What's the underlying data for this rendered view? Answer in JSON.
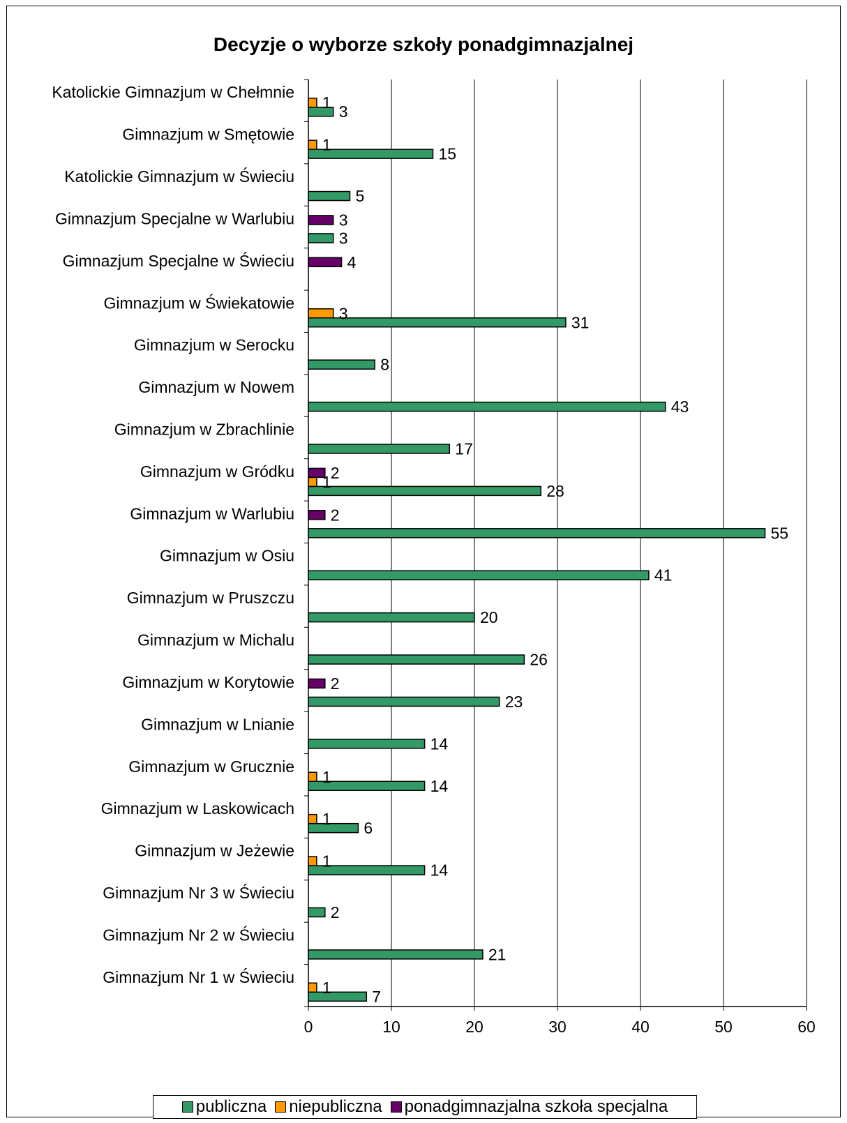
{
  "chart_data": {
    "type": "bar",
    "orientation": "horizontal",
    "title": "Decyzje o wyborze szkoły ponadgimnazjalnej",
    "categories": [
      "Katolickie Gimnazjum w Chełmnie",
      "Gimnazjum w Smętowie",
      "Katolickie Gimnazjum w Świeciu",
      "Gimnazjum Specjalne w Warlubiu",
      "Gimnazjum Specjalne w Świeciu",
      "Gimnazjum w Świekatowie",
      "Gimnazjum w Serocku",
      "Gimnazjum w Nowem",
      "Gimnazjum w Zbrachlinie",
      "Gimnazjum w Gródku",
      "Gimnazjum w Warlubiu",
      "Gimnazjum w Osiu",
      "Gimnazjum w Pruszczu",
      "Gimnazjum w Michalu",
      "Gimnazjum w Korytowie",
      "Gimnazjum w Lnianie",
      "Gimnazjum w Grucznie",
      "Gimnazjum w Laskowicach",
      "Gimnazjum w Jeżewie",
      "Gimnazjum Nr 3 w Świeciu",
      "Gimnazjum Nr 2 w Świeciu",
      "Gimnazjum Nr 1 w Świeciu"
    ],
    "series": [
      {
        "name": "publiczna",
        "color": "#339966",
        "values": [
          3,
          15,
          5,
          3,
          null,
          31,
          8,
          43,
          17,
          28,
          55,
          41,
          20,
          26,
          23,
          14,
          14,
          6,
          14,
          2,
          21,
          7
        ]
      },
      {
        "name": "niepubliczna",
        "color": "#FF9900",
        "values": [
          1,
          1,
          null,
          null,
          null,
          3,
          null,
          null,
          null,
          1,
          null,
          null,
          null,
          null,
          null,
          null,
          1,
          1,
          1,
          null,
          null,
          1
        ]
      },
      {
        "name": "ponadgimnazjalna szkoła specjalna",
        "color": "#660066",
        "values": [
          null,
          null,
          null,
          3,
          4,
          null,
          null,
          null,
          null,
          2,
          2,
          null,
          null,
          null,
          2,
          null,
          null,
          null,
          null,
          null,
          null,
          null
        ]
      }
    ],
    "xlim": [
      0,
      60
    ],
    "xticks": [
      0,
      10,
      20,
      30,
      40,
      50,
      60
    ],
    "grid": "vertical",
    "legend_position": "bottom"
  }
}
